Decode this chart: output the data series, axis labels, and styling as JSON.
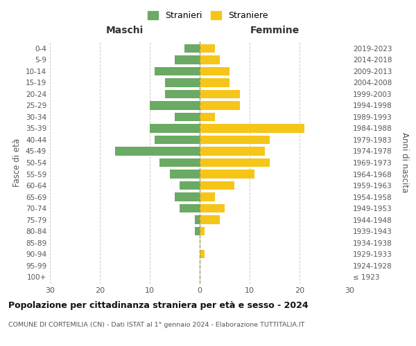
{
  "age_groups": [
    "100+",
    "95-99",
    "90-94",
    "85-89",
    "80-84",
    "75-79",
    "70-74",
    "65-69",
    "60-64",
    "55-59",
    "50-54",
    "45-49",
    "40-44",
    "35-39",
    "30-34",
    "25-29",
    "20-24",
    "15-19",
    "10-14",
    "5-9",
    "0-4"
  ],
  "birth_years": [
    "≤ 1923",
    "1924-1928",
    "1929-1933",
    "1934-1938",
    "1939-1943",
    "1944-1948",
    "1949-1953",
    "1954-1958",
    "1959-1963",
    "1964-1968",
    "1969-1973",
    "1974-1978",
    "1979-1983",
    "1984-1988",
    "1989-1993",
    "1994-1998",
    "1999-2003",
    "2004-2008",
    "2009-2013",
    "2014-2018",
    "2019-2023"
  ],
  "maschi": [
    0,
    0,
    0,
    0,
    1,
    1,
    4,
    5,
    4,
    6,
    8,
    17,
    9,
    10,
    5,
    10,
    7,
    7,
    9,
    5,
    3
  ],
  "femmine": [
    0,
    0,
    1,
    0,
    1,
    4,
    5,
    3,
    7,
    11,
    14,
    13,
    14,
    21,
    3,
    8,
    8,
    6,
    6,
    4,
    3
  ],
  "color_maschi": "#6aaa64",
  "color_femmine": "#f5c518",
  "background_color": "#ffffff",
  "grid_color": "#cccccc",
  "title": "Popolazione per cittadinanza straniera per età e sesso - 2024",
  "subtitle": "COMUNE DI CORTEMILIA (CN) - Dati ISTAT al 1° gennaio 2024 - Elaborazione TUTTITALIA.IT",
  "xlabel_left": "Maschi",
  "xlabel_right": "Femmine",
  "ylabel_left": "Fasce di età",
  "ylabel_right": "Anni di nascita",
  "legend_maschi": "Stranieri",
  "legend_femmine": "Straniere",
  "xlim": 30
}
